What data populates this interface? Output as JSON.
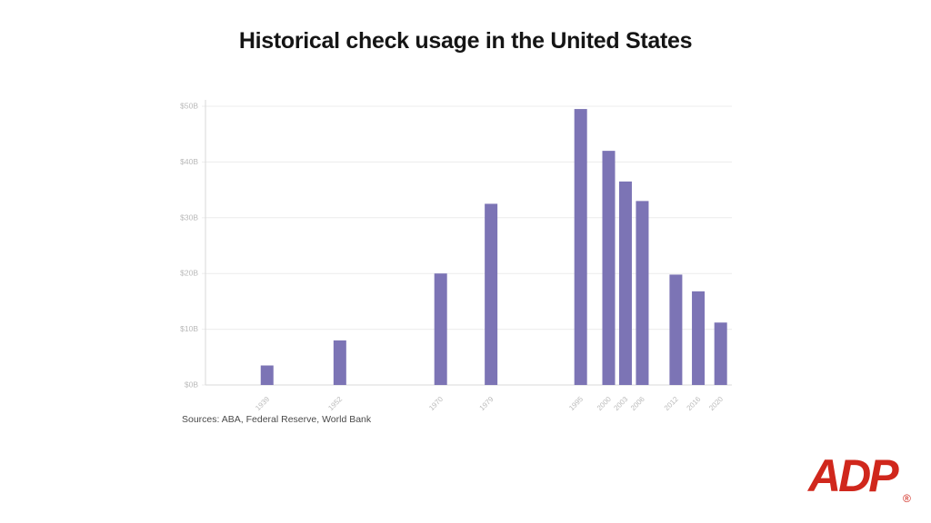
{
  "page": {
    "background_color": "#ffffff"
  },
  "chart_data": {
    "type": "bar",
    "title": "Historical check usage in the United States",
    "categories": [
      "1939",
      "1952",
      "1970",
      "1979",
      "1995",
      "2000",
      "2003",
      "2006",
      "2012",
      "2016",
      "2020"
    ],
    "x": [
      1939,
      1952,
      1970,
      1979,
      1995,
      2000,
      2003,
      2006,
      2012,
      2016,
      2020
    ],
    "values": [
      3.5,
      8,
      20,
      32.5,
      49.5,
      42,
      36.5,
      33,
      19.8,
      16.8,
      11.2
    ],
    "xlabel": "",
    "ylabel": "",
    "ylim": [
      0,
      50
    ],
    "x_domain": [
      1928,
      2022
    ],
    "y_ticks": [
      {
        "value": 0,
        "label": "$0B"
      },
      {
        "value": 10,
        "label": "$10B"
      },
      {
        "value": 20,
        "label": "$20B"
      },
      {
        "value": 30,
        "label": "$30B"
      },
      {
        "value": 40,
        "label": "$40B"
      },
      {
        "value": 50,
        "label": "$50B"
      }
    ],
    "grid": true,
    "legend": "none",
    "bar_color": "#7c74b5",
    "gridline_color": "#ececec",
    "axis_color": "#d9d9d9",
    "tick_label_color": "#b9b9b9"
  },
  "footer": {
    "sources": "Sources: ABA, Federal Reserve, World Bank"
  },
  "logo": {
    "text": "ADP",
    "registered_mark": "®",
    "color": "#d0271c"
  }
}
